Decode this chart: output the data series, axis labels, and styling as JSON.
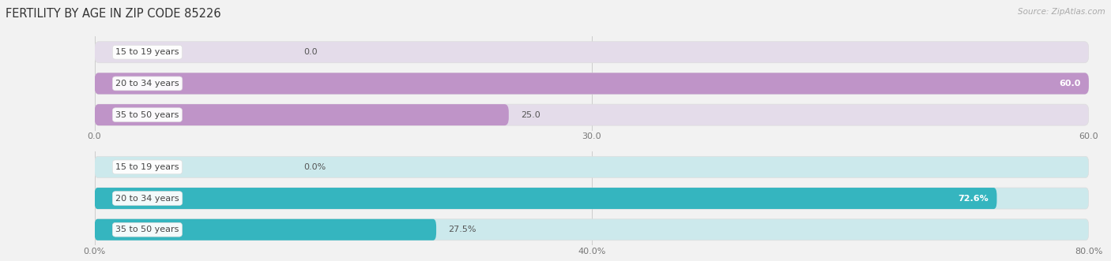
{
  "title": "FERTILITY BY AGE IN ZIP CODE 85226",
  "source": "Source: ZipAtlas.com",
  "top_chart": {
    "categories": [
      "15 to 19 years",
      "20 to 34 years",
      "35 to 50 years"
    ],
    "values": [
      0.0,
      60.0,
      25.0
    ],
    "bar_color": "#bf94c8",
    "bg_bar_color": "#e4dcea",
    "xlim": [
      0,
      60
    ],
    "xticks": [
      0.0,
      30.0,
      60.0
    ],
    "xtick_labels": [
      "0.0",
      "30.0",
      "60.0"
    ],
    "value_labels": [
      "0.0",
      "60.0",
      "25.0"
    ],
    "value_inside": [
      false,
      true,
      false
    ]
  },
  "bottom_chart": {
    "categories": [
      "15 to 19 years",
      "20 to 34 years",
      "35 to 50 years"
    ],
    "values": [
      0.0,
      72.6,
      27.5
    ],
    "bar_color": "#35b5bf",
    "bg_bar_color": "#cce9ec",
    "xlim": [
      0,
      80
    ],
    "xticks": [
      0.0,
      40.0,
      80.0
    ],
    "xtick_labels": [
      "0.0%",
      "40.0%",
      "80.0%"
    ],
    "value_labels": [
      "0.0%",
      "72.6%",
      "27.5%"
    ],
    "value_inside": [
      false,
      true,
      false
    ]
  },
  "fig_bg_color": "#f2f2f2",
  "bar_bg_color": "#e8e8e8",
  "bar_height": 0.68,
  "label_fontsize": 8.0,
  "title_fontsize": 10.5,
  "tick_fontsize": 8.0,
  "value_fontsize": 8.0
}
